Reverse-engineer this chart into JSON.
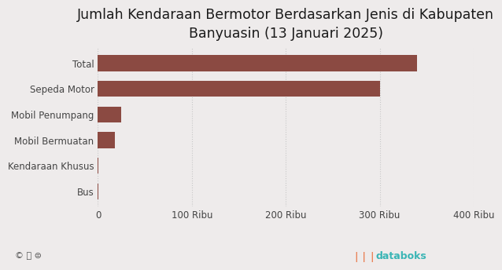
{
  "title": "Jumlah Kendaraan Bermotor Berdasarkan Jenis di Kabupaten\nBanyuasin (13 Januari 2025)",
  "categories": [
    "Total",
    "Sepeda Motor",
    "Mobil Penumpang",
    "Mobil Bermuatan",
    "Kendaraan Khusus",
    "Bus"
  ],
  "values": [
    340000,
    300000,
    25000,
    18000,
    500,
    200
  ],
  "bar_color": "#8B4A42",
  "background_color": "#eeebeb",
  "xlim": [
    0,
    400000
  ],
  "xtick_values": [
    0,
    100000,
    200000,
    300000,
    400000
  ],
  "xtick_labels": [
    "0",
    "100 Ribu",
    "200 Ribu",
    "300 Ribu",
    "400 Ribu"
  ],
  "title_fontsize": 12.5,
  "tick_fontsize": 8.5,
  "grid_color": "#c8c8c8",
  "bar_height": 0.62
}
